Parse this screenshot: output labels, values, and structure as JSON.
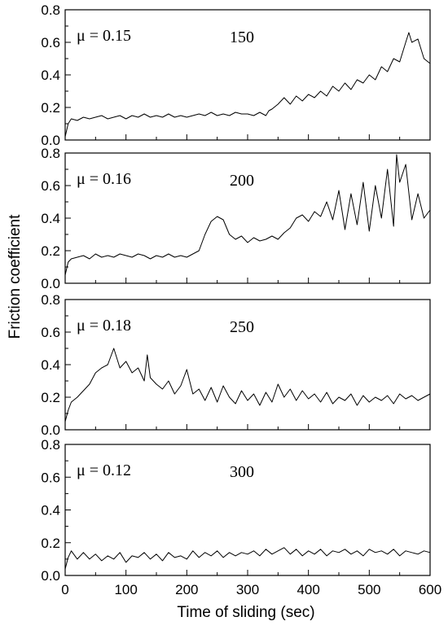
{
  "chart_data": {
    "type": "line",
    "xlabel": "Time of sliding (sec)",
    "ylabel": "Friction coefficient",
    "xlim": [
      0,
      600
    ],
    "xticks": [
      0,
      100,
      200,
      300,
      400,
      500,
      600
    ],
    "ylim": [
      0,
      0.8
    ],
    "yticks": [
      "0.0",
      "0.2",
      "0.4",
      "0.6",
      "0.8"
    ],
    "grid": false,
    "legend": "none",
    "panels": [
      {
        "mu_label": "μ = 0.15",
        "load_label": "150",
        "x": [
          0,
          5,
          10,
          20,
          30,
          40,
          50,
          60,
          70,
          80,
          90,
          100,
          110,
          120,
          130,
          140,
          150,
          160,
          170,
          180,
          190,
          200,
          210,
          220,
          230,
          240,
          250,
          260,
          270,
          280,
          290,
          300,
          310,
          320,
          330,
          335,
          340,
          350,
          360,
          370,
          380,
          390,
          400,
          410,
          420,
          430,
          440,
          450,
          460,
          470,
          480,
          490,
          500,
          510,
          520,
          530,
          540,
          550,
          560,
          565,
          570,
          580,
          590,
          600
        ],
        "y": [
          0.02,
          0.1,
          0.13,
          0.12,
          0.14,
          0.13,
          0.14,
          0.15,
          0.13,
          0.14,
          0.15,
          0.13,
          0.15,
          0.14,
          0.16,
          0.14,
          0.15,
          0.14,
          0.16,
          0.14,
          0.15,
          0.14,
          0.15,
          0.16,
          0.15,
          0.17,
          0.15,
          0.16,
          0.15,
          0.17,
          0.16,
          0.16,
          0.15,
          0.17,
          0.15,
          0.18,
          0.19,
          0.22,
          0.26,
          0.22,
          0.27,
          0.24,
          0.28,
          0.26,
          0.3,
          0.27,
          0.33,
          0.3,
          0.35,
          0.31,
          0.37,
          0.35,
          0.4,
          0.37,
          0.45,
          0.42,
          0.5,
          0.48,
          0.6,
          0.66,
          0.6,
          0.62,
          0.5,
          0.47
        ]
      },
      {
        "mu_label": "μ = 0.16",
        "load_label": "200",
        "x": [
          0,
          5,
          10,
          20,
          30,
          40,
          50,
          60,
          70,
          80,
          90,
          100,
          110,
          120,
          130,
          140,
          150,
          160,
          170,
          180,
          190,
          200,
          210,
          220,
          230,
          240,
          250,
          260,
          270,
          280,
          290,
          300,
          310,
          320,
          330,
          340,
          350,
          360,
          370,
          380,
          390,
          400,
          410,
          420,
          430,
          440,
          450,
          460,
          470,
          480,
          490,
          500,
          510,
          520,
          530,
          540,
          545,
          550,
          560,
          570,
          580,
          590,
          600
        ],
        "y": [
          0.05,
          0.13,
          0.15,
          0.16,
          0.17,
          0.15,
          0.18,
          0.16,
          0.17,
          0.16,
          0.18,
          0.17,
          0.16,
          0.18,
          0.17,
          0.15,
          0.17,
          0.16,
          0.18,
          0.16,
          0.17,
          0.16,
          0.18,
          0.2,
          0.3,
          0.38,
          0.41,
          0.39,
          0.3,
          0.27,
          0.29,
          0.25,
          0.28,
          0.26,
          0.27,
          0.29,
          0.27,
          0.31,
          0.34,
          0.4,
          0.42,
          0.38,
          0.44,
          0.41,
          0.5,
          0.39,
          0.57,
          0.33,
          0.55,
          0.36,
          0.62,
          0.32,
          0.6,
          0.4,
          0.7,
          0.35,
          0.79,
          0.62,
          0.73,
          0.39,
          0.55,
          0.4,
          0.45
        ]
      },
      {
        "mu_label": "μ = 0.18",
        "load_label": "250",
        "x": [
          0,
          5,
          10,
          20,
          30,
          40,
          50,
          60,
          70,
          80,
          90,
          100,
          110,
          120,
          130,
          135,
          140,
          150,
          160,
          170,
          180,
          190,
          200,
          210,
          220,
          230,
          240,
          250,
          260,
          270,
          280,
          290,
          300,
          310,
          320,
          330,
          340,
          350,
          360,
          370,
          380,
          390,
          400,
          410,
          420,
          430,
          440,
          450,
          460,
          470,
          480,
          490,
          500,
          510,
          520,
          530,
          540,
          550,
          560,
          570,
          580,
          590,
          600
        ],
        "y": [
          0.05,
          0.12,
          0.17,
          0.2,
          0.24,
          0.28,
          0.35,
          0.38,
          0.4,
          0.5,
          0.38,
          0.42,
          0.35,
          0.38,
          0.3,
          0.46,
          0.32,
          0.28,
          0.25,
          0.3,
          0.22,
          0.27,
          0.37,
          0.22,
          0.25,
          0.18,
          0.26,
          0.17,
          0.27,
          0.2,
          0.16,
          0.24,
          0.18,
          0.22,
          0.15,
          0.23,
          0.17,
          0.28,
          0.2,
          0.25,
          0.18,
          0.24,
          0.19,
          0.22,
          0.17,
          0.23,
          0.16,
          0.2,
          0.18,
          0.22,
          0.15,
          0.21,
          0.17,
          0.2,
          0.18,
          0.21,
          0.16,
          0.22,
          0.19,
          0.21,
          0.18,
          0.2,
          0.22
        ]
      },
      {
        "mu_label": "μ = 0.12",
        "load_label": "300",
        "x": [
          0,
          5,
          10,
          20,
          30,
          40,
          50,
          60,
          70,
          80,
          90,
          100,
          110,
          120,
          130,
          140,
          150,
          160,
          170,
          180,
          190,
          200,
          210,
          220,
          230,
          240,
          250,
          260,
          270,
          280,
          290,
          300,
          310,
          320,
          330,
          340,
          350,
          360,
          370,
          380,
          390,
          400,
          410,
          420,
          430,
          440,
          450,
          460,
          470,
          480,
          490,
          500,
          510,
          520,
          530,
          540,
          550,
          560,
          570,
          580,
          590,
          600
        ],
        "y": [
          0.04,
          0.11,
          0.15,
          0.1,
          0.14,
          0.1,
          0.13,
          0.09,
          0.12,
          0.1,
          0.14,
          0.08,
          0.12,
          0.11,
          0.14,
          0.1,
          0.13,
          0.09,
          0.14,
          0.11,
          0.12,
          0.1,
          0.15,
          0.11,
          0.14,
          0.12,
          0.15,
          0.11,
          0.14,
          0.12,
          0.14,
          0.13,
          0.15,
          0.12,
          0.16,
          0.13,
          0.15,
          0.17,
          0.13,
          0.16,
          0.12,
          0.15,
          0.13,
          0.16,
          0.12,
          0.15,
          0.14,
          0.16,
          0.13,
          0.15,
          0.12,
          0.16,
          0.14,
          0.15,
          0.13,
          0.16,
          0.12,
          0.15,
          0.14,
          0.13,
          0.15,
          0.14
        ]
      }
    ]
  }
}
